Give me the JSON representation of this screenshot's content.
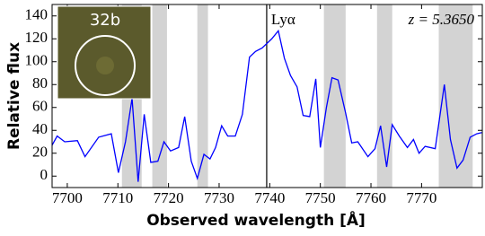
{
  "chart_data": {
    "type": "line",
    "xlabel": "Observed wavelength [Å]",
    "ylabel": "Relative flux",
    "annotations": [
      "z = 5.3650"
    ],
    "vline": {
      "x": 7739.4,
      "label": "Lyα",
      "color": "#000000"
    },
    "inset": {
      "label": "32b"
    },
    "shaded_regions": [
      [
        7710.8,
        7714.7
      ],
      [
        7716.8,
        7719.7
      ],
      [
        7725.7,
        7727.8
      ],
      [
        7750.7,
        7755.0
      ],
      [
        7761.2,
        7764.2
      ],
      [
        7773.4,
        7780.1
      ]
    ],
    "shade_color": "#d3d3d3",
    "xlim": [
      7697,
      7782
    ],
    "ylim": [
      -10,
      150
    ],
    "xticks": [
      7700,
      7710,
      7720,
      7730,
      7740,
      7750,
      7760,
      7770
    ],
    "yticks": [
      0,
      20,
      40,
      60,
      80,
      100,
      120,
      140
    ],
    "grid": false,
    "x": [
      7697.0,
      7698.0,
      7699.5,
      7702.0,
      7703.5,
      7706.2,
      7708.7,
      7710.1,
      7711.5,
      7712.8,
      7714.0,
      7715.2,
      7716.5,
      7717.9,
      7719.1,
      7720.4,
      7722.0,
      7723.2,
      7724.5,
      7725.7,
      7727.0,
      7728.2,
      7729.3,
      7730.5,
      7731.7,
      7733.2,
      7734.6,
      7736.0,
      7737.2,
      7738.5,
      7740.4,
      7741.7,
      7742.9,
      7744.1,
      7745.4,
      7746.6,
      7747.9,
      7749.1,
      7750.0,
      7751.2,
      7752.3,
      7753.5,
      7755.0,
      7756.2,
      7757.4,
      7759.4,
      7760.8,
      7761.9,
      7763.1,
      7764.2,
      7765.6,
      7767.2,
      7768.4,
      7769.5,
      7770.7,
      7772.7,
      7774.5,
      7775.7,
      7777.0,
      7778.2,
      7779.6,
      7780.9,
      7781.9
    ],
    "series": [
      {
        "color": "#0000ff",
        "values": [
          27,
          35,
          30,
          31,
          17,
          34,
          37,
          3,
          30,
          68,
          -5,
          54,
          12,
          13,
          30,
          22,
          25,
          52,
          13,
          -2,
          19,
          15,
          25,
          44,
          35,
          35,
          54,
          104,
          109,
          112,
          120,
          127,
          103,
          88,
          78,
          53,
          52,
          85,
          25,
          60,
          86,
          84,
          55,
          29,
          30,
          17,
          24,
          44,
          8,
          45,
          35,
          25,
          32,
          20,
          26,
          24,
          80,
          32,
          7,
          14,
          34,
          37,
          38
        ]
      }
    ]
  }
}
